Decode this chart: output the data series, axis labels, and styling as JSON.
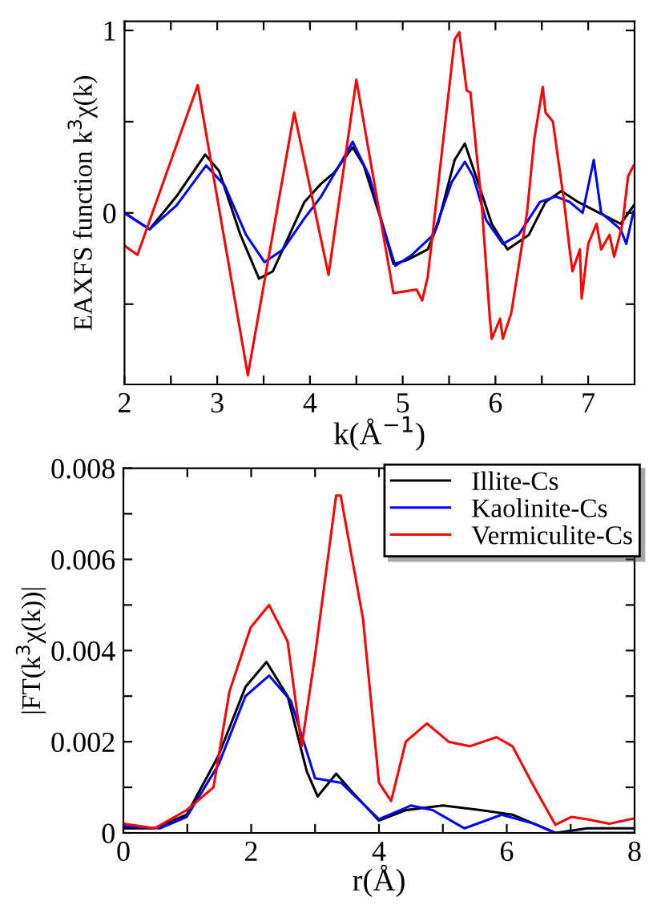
{
  "chart_data": [
    {
      "type": "line",
      "xlabel": "k(Å$^{−1}$)",
      "ylabel": "EAXFS function k$^{3}$χ(k)",
      "xlim": [
        2,
        7.5
      ],
      "ylim": [
        -0.94,
        1.05
      ],
      "xticks": [
        2,
        {
          "value": 2.5,
          "label": null
        },
        3,
        {
          "value": 3.5,
          "label": null
        },
        4,
        {
          "value": 4.5,
          "label": null
        },
        5,
        {
          "value": 5.5,
          "label": null
        },
        6,
        {
          "value": 6.5,
          "label": null
        },
        7
      ],
      "yticks": [
        {
          "value": -0.5,
          "label": null
        },
        0,
        {
          "value": 0.5,
          "label": null
        },
        1
      ],
      "grid": false,
      "legend": false,
      "marker": "none",
      "line_style": "solid",
      "series": [
        {
          "color": "#000000",
          "x": [
            2,
            2.27,
            2.56,
            2.87,
            3.02,
            3.25,
            3.45,
            3.6,
            3.94,
            4.12,
            4.26,
            4.46,
            4.58,
            4.78,
            4.9,
            5.04,
            5.27,
            5.38,
            5.56,
            5.67,
            5.79,
            5.96,
            6.13,
            6.36,
            6.54,
            6.71,
            6.89,
            7.12,
            7.35,
            7.49
          ],
          "values": [
            0,
            -0.09,
            0.09,
            0.32,
            0.23,
            -0.12,
            -0.36,
            -0.32,
            0.06,
            0.16,
            0.22,
            0.36,
            0.26,
            -0.06,
            -0.28,
            -0.26,
            -0.2,
            -0.06,
            0.29,
            0.38,
            0.2,
            -0.06,
            -0.2,
            -0.12,
            0.06,
            0.12,
            0.06,
            0,
            -0.06,
            0.04
          ]
        },
        {
          "color": "#0000ff",
          "x": [
            2,
            2.27,
            2.56,
            2.88,
            3.08,
            3.31,
            3.51,
            3.71,
            3.94,
            4.12,
            4.35,
            4.46,
            4.64,
            4.78,
            4.92,
            5.1,
            5.33,
            5.53,
            5.67,
            5.76,
            5.9,
            6.08,
            6.25,
            6.48,
            6.65,
            6.8,
            6.94,
            7.06,
            7.14,
            7.35,
            7.41,
            7.49
          ],
          "values": [
            0,
            -0.09,
            0.04,
            0.26,
            0.15,
            -0.12,
            -0.27,
            -0.2,
            -0.03,
            0.09,
            0.29,
            0.39,
            0.2,
            -0.06,
            -0.29,
            -0.23,
            -0.12,
            0.17,
            0.28,
            0.2,
            -0.04,
            -0.17,
            -0.12,
            0.06,
            0.09,
            0.06,
            0,
            0.29,
            0,
            -0.09,
            -0.17,
            0.01
          ]
        },
        {
          "color": "#ff0000",
          "x": [
            2,
            2.14,
            2.79,
            3.33,
            3.83,
            4.2,
            4.5,
            4.78,
            4.9,
            5.15,
            5.21,
            5.27,
            5.56,
            5.61,
            5.69,
            5.73,
            5.85,
            5.94,
            5.96,
            6.05,
            6.08,
            6.17,
            6.34,
            6.42,
            6.51,
            6.54,
            6.62,
            6.74,
            6.8,
            6.83,
            6.91,
            6.93,
            7.0,
            7.09,
            7.14,
            7.23,
            7.28,
            7.37,
            7.43,
            7.49
          ],
          "values": [
            -0.18,
            -0.23,
            0.7,
            -0.89,
            0.55,
            -0.34,
            0.73,
            -0.09,
            -0.44,
            -0.42,
            -0.48,
            -0.35,
            0.95,
            0.99,
            0.67,
            0.66,
            0.06,
            -0.58,
            -0.69,
            -0.58,
            -0.69,
            -0.55,
            0,
            0.41,
            0.69,
            0.55,
            0.5,
            0.06,
            -0.2,
            -0.32,
            -0.2,
            -0.47,
            -0.17,
            -0.06,
            -0.2,
            -0.12,
            -0.24,
            -0.06,
            0.2,
            0.26
          ]
        }
      ]
    },
    {
      "type": "line",
      "xlabel": "r(Å)",
      "ylabel": "|FT(k$^{3}$χ(k))|",
      "xlim": [
        0,
        8
      ],
      "ylim": [
        0,
        0.008
      ],
      "xticks": [
        0,
        {
          "value": 1,
          "label": null
        },
        2,
        {
          "value": 3,
          "label": null
        },
        4,
        {
          "value": 5,
          "label": null
        },
        6,
        {
          "value": 7,
          "label": null
        },
        8
      ],
      "yticks": [
        {
          "value": 0,
          "label": "0"
        },
        {
          "value": 0.001,
          "label": null
        },
        0.002,
        {
          "value": 0.003,
          "label": null
        },
        0.004,
        {
          "value": 0.005,
          "label": null
        },
        0.006,
        {
          "value": 0.007,
          "label": null
        },
        0.008
      ],
      "grid": false,
      "legend": "top right",
      "marker": "none",
      "line_style": "solid",
      "series": [
        {
          "name": "Illite-Cs",
          "color": "#000000",
          "x": [
            0,
            0.49,
            0.99,
            1.49,
            1.91,
            2.24,
            2.57,
            2.87,
            3.04,
            3.33,
            3.58,
            4.0,
            4.42,
            5.0,
            5.59,
            6.09,
            6.43,
            6.76,
            7.26,
            8
          ],
          "values": [
            0.0001,
            0.0001,
            0.0004,
            0.0017,
            0.0032,
            0.00375,
            0.003,
            0.00135,
            0.0008,
            0.0013,
            0.0009,
            0.00027,
            0.0005,
            0.0006,
            0.0005,
            0.0004,
            0.0002,
            0,
            0.0001,
            0.0001
          ]
        },
        {
          "name": "Kaolinite-Cs",
          "color": "#0000ff",
          "x": [
            0,
            0.57,
            0.99,
            1.49,
            1.91,
            2.28,
            2.62,
            3.0,
            3.41,
            4.0,
            4.5,
            4.84,
            5.34,
            5.92,
            6.43,
            6.76,
            8
          ],
          "values": [
            0.00015,
            0.0001,
            0.00035,
            0.0015,
            0.003,
            0.00345,
            0.0029,
            0.0012,
            0.0011,
            0.0003,
            0.0006,
            0.0005,
            0.0001,
            0.0004,
            0.0002,
            0,
            0
          ]
        },
        {
          "name": "Vermiculite-Cs",
          "color": "#ff0000",
          "x": [
            0,
            0.49,
            0.99,
            1.41,
            1.66,
            1.99,
            2.28,
            2.57,
            2.79,
            3.0,
            3.33,
            3.4,
            3.75,
            4.0,
            4.19,
            4.42,
            4.75,
            5.09,
            5.42,
            5.84,
            6.09,
            6.43,
            6.76,
            7.01,
            7.26,
            7.6,
            8
          ],
          "values": [
            0.0002,
            0.0001,
            0.0005,
            0.001,
            0.0031,
            0.0045,
            0.005,
            0.0042,
            0.0019,
            0.0039,
            0.0074,
            0.0074,
            0.0047,
            0.0011,
            0.0007,
            0.002,
            0.0024,
            0.002,
            0.0019,
            0.0021,
            0.0019,
            0.001,
            0.00018,
            0.00035,
            0.0003,
            0.0002,
            0.00032
          ]
        }
      ]
    }
  ]
}
